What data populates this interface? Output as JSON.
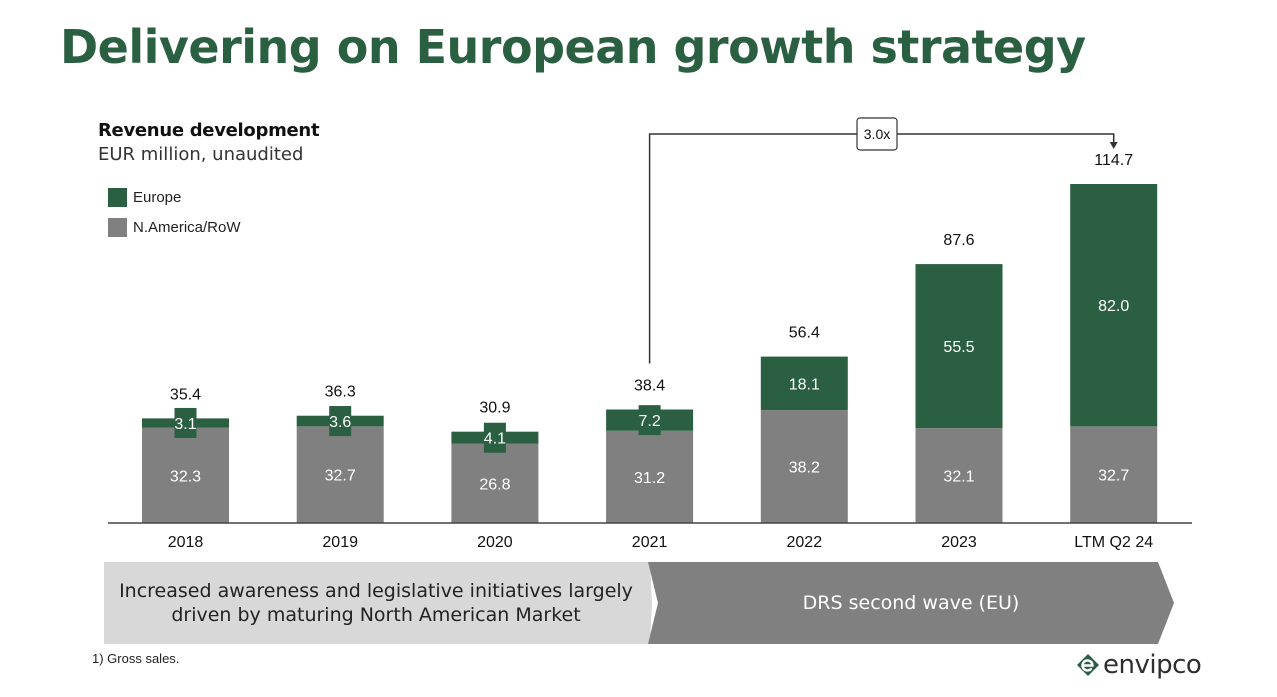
{
  "page": {
    "title": "Delivering on European growth strategy",
    "footnote": "1) Gross sales.",
    "logo_text": "envipco"
  },
  "colors": {
    "europe": "#2a6041",
    "namerica": "#808080",
    "title": "#2a6041"
  },
  "chevrons": {
    "left": "Increased awareness and legislative initiatives largely driven by maturing North American Market",
    "right": "DRS second wave (EU)"
  },
  "chart_data": {
    "type": "bar",
    "stacked": true,
    "title": "Revenue development",
    "subtitle": "EUR million, unaudited",
    "categories": [
      "2018",
      "2019",
      "2020",
      "2021",
      "2022",
      "2023",
      "LTM Q2 24"
    ],
    "series": [
      {
        "name": "N.America/RoW",
        "values": [
          32.3,
          32.7,
          26.8,
          31.2,
          38.2,
          32.1,
          32.7
        ]
      },
      {
        "name": "Europe",
        "values": [
          3.1,
          3.6,
          4.1,
          7.2,
          18.1,
          55.5,
          82.0
        ]
      }
    ],
    "totals": [
      35.4,
      36.3,
      30.9,
      38.4,
      56.4,
      87.6,
      114.7
    ],
    "legend": [
      "Europe",
      "N.America/RoW"
    ],
    "annotation": {
      "label": "3.0x",
      "from": "2021",
      "to": "LTM Q2 24"
    },
    "ylim": [
      0,
      114.7
    ]
  }
}
